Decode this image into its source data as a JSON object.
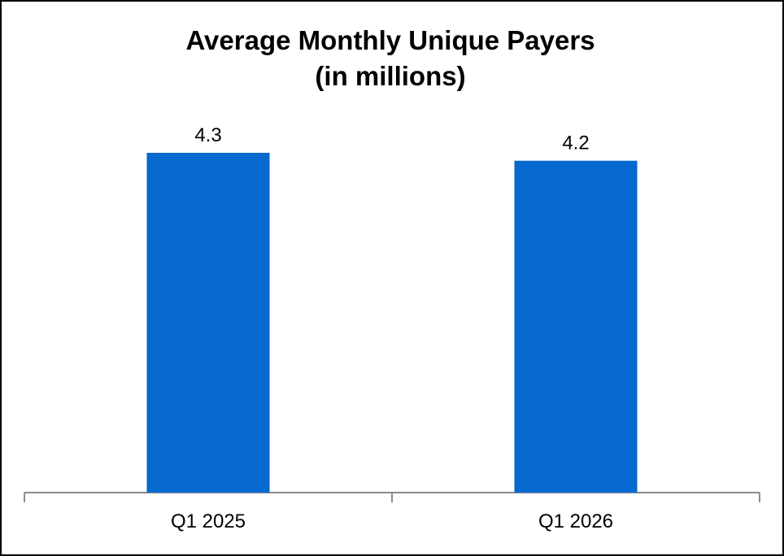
{
  "chart_data": {
    "type": "bar",
    "title": "Average Monthly Unique Payers",
    "subtitle": "(in millions)",
    "categories": [
      "Q1 2025",
      "Q1 2026"
    ],
    "values": [
      4.3,
      4.2
    ],
    "data_labels": [
      "4.3",
      "4.2"
    ],
    "ylim": [
      0,
      4.3
    ],
    "grid": false,
    "legend": "none",
    "bar_color": "#0569d0",
    "axis_color": "#8c8c8c"
  }
}
